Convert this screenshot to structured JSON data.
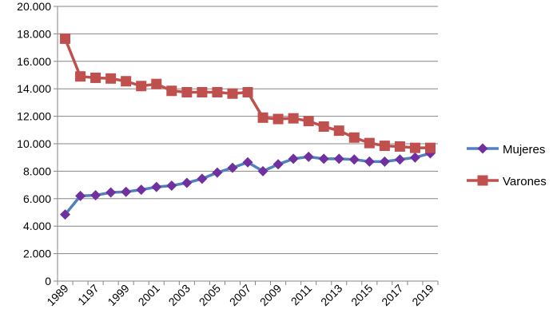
{
  "chart_data": {
    "type": "line",
    "title": "",
    "xlabel": "",
    "ylabel": "",
    "ylim": [
      0,
      20000
    ],
    "y_ticks": [
      0,
      2000,
      4000,
      6000,
      8000,
      10000,
      12000,
      14000,
      16000,
      18000,
      20000
    ],
    "y_tick_labels": [
      "0",
      "2.000",
      "4.000",
      "6.000",
      "8.000",
      "10.000",
      "12.000",
      "14.000",
      "16.000",
      "18.000",
      "20.000"
    ],
    "x_tick_labels": [
      "1989",
      "1197",
      "1999",
      "2001",
      "2003",
      "2005",
      "2007",
      "2009",
      "2011",
      "2013",
      "2015",
      "2017",
      "2019"
    ],
    "grid": "horizontal",
    "legend_position": "right",
    "series": [
      {
        "name": "Mujeres",
        "color": "#4f81bd",
        "marker": "diamond",
        "marker_color": "#7030a0",
        "values": [
          4850,
          6200,
          6250,
          6450,
          6500,
          6650,
          6850,
          6950,
          7150,
          7450,
          7900,
          8250,
          8650,
          8000,
          8500,
          8900,
          9050,
          8900,
          8900,
          8850,
          8700,
          8700,
          8850,
          9000,
          9300
        ]
      },
      {
        "name": "Varones",
        "color": "#c0504d",
        "marker": "square",
        "marker_color": "#c0504d",
        "values": [
          17650,
          14900,
          14800,
          14750,
          14550,
          14200,
          14350,
          13850,
          13750,
          13750,
          13750,
          13650,
          13750,
          11900,
          11800,
          11850,
          11650,
          11250,
          10950,
          10450,
          10050,
          9850,
          9800,
          9700,
          9700
        ]
      }
    ]
  }
}
